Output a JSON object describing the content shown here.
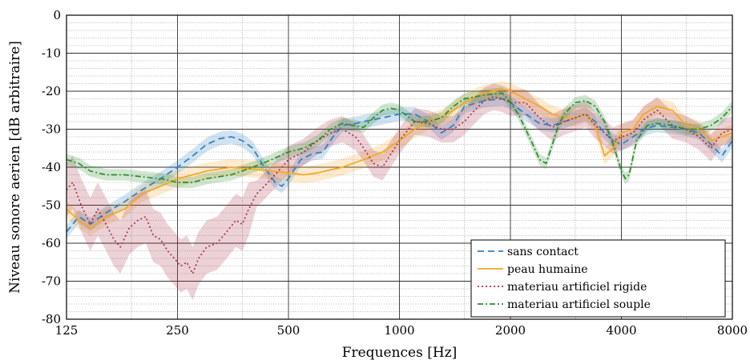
{
  "chart_data": {
    "type": "line",
    "xlabel": "Frequences [Hz]",
    "ylabel": "Niveau sonore aerien [dB arbitraire]",
    "x_scale": "log2",
    "xlim": [
      125,
      8000
    ],
    "ylim": [
      -80,
      0
    ],
    "x_ticks": [
      125,
      250,
      500,
      1000,
      2000,
      4000,
      8000
    ],
    "x_tick_labels": [
      "125",
      "250",
      "500",
      "1000",
      "2000",
      "4000",
      "8000"
    ],
    "y_ticks": [
      0,
      -10,
      -20,
      -30,
      -40,
      -50,
      -60,
      -70,
      -80
    ],
    "y_tick_labels": [
      "0",
      "-10",
      "-20",
      "-30",
      "-40",
      "-50",
      "-60",
      "-70",
      "-80"
    ],
    "grid": true,
    "minor_grid": true,
    "legend_position": "bottom-right",
    "series": [
      {
        "name": "sans contact",
        "color": "#2f7fbf",
        "dash": "8 5",
        "band": 1.8,
        "x": [
          125,
          135,
          145,
          160,
          180,
          200,
          225,
          250,
          275,
          300,
          325,
          350,
          375,
          400,
          430,
          460,
          480,
          500,
          540,
          580,
          620,
          660,
          700,
          760,
          800,
          900,
          1000,
          1100,
          1200,
          1300,
          1400,
          1500,
          1700,
          1900,
          2000,
          2200,
          2400,
          2600,
          2800,
          3000,
          3200,
          3400,
          3600,
          3800,
          4000,
          4300,
          4600,
          5000,
          5500,
          6000,
          6500,
          7000,
          7500,
          8000
        ],
        "y": [
          -57,
          -53,
          -55,
          -52,
          -49,
          -46,
          -43,
          -40,
          -37,
          -34,
          -32.5,
          -32,
          -33,
          -35,
          -40,
          -44,
          -45,
          -43,
          -38,
          -36.5,
          -36,
          -32,
          -29,
          -28.5,
          -28,
          -27,
          -26,
          -26,
          -28,
          -31,
          -29,
          -24,
          -22.5,
          -22,
          -23,
          -26,
          -28.5,
          -29,
          -28,
          -27,
          -26,
          -28,
          -31,
          -33,
          -34,
          -32,
          -30,
          -29,
          -29.5,
          -30,
          -31,
          -34,
          -37,
          -33
        ]
      },
      {
        "name": "peau humaine",
        "color": "#f5a623",
        "dash": "",
        "band": 2.2,
        "x": [
          125,
          135,
          145,
          160,
          180,
          200,
          225,
          250,
          275,
          300,
          350,
          400,
          450,
          500,
          550,
          600,
          700,
          800,
          900,
          1000,
          1100,
          1200,
          1300,
          1400,
          1500,
          1600,
          1700,
          1800,
          1900,
          2000,
          2200,
          2400,
          2600,
          2800,
          3000,
          3200,
          3400,
          3600,
          3800,
          4000,
          4300,
          4600,
          5000,
          5500,
          6000,
          6500,
          7000,
          7500,
          8000
        ],
        "y": [
          -51,
          -54,
          -56,
          -53,
          -51,
          -47,
          -45,
          -43,
          -42,
          -41,
          -40,
          -40.5,
          -41,
          -41.5,
          -42,
          -41.5,
          -40,
          -38,
          -36,
          -33,
          -30,
          -28,
          -27,
          -25,
          -23,
          -21.5,
          -20.5,
          -20,
          -19.5,
          -20,
          -22,
          -24,
          -26,
          -27,
          -27,
          -26,
          -29,
          -37,
          -35,
          -31,
          -30,
          -26,
          -24,
          -25,
          -29,
          -30,
          -33,
          -32,
          -31
        ]
      },
      {
        "name": "materiau artificiel rigide",
        "color": "#a8324a",
        "dash": "2 3",
        "band": 3.5,
        "band_large": {
          "x_from": 125,
          "x_to": 400,
          "width": 7
        },
        "x": [
          125,
          130,
          137,
          145,
          152,
          160,
          168,
          175,
          185,
          195,
          205,
          215,
          225,
          235,
          245,
          255,
          265,
          275,
          285,
          300,
          320,
          340,
          360,
          375,
          390,
          410,
          440,
          470,
          500,
          550,
          600,
          650,
          700,
          760,
          800,
          850,
          900,
          1000,
          1100,
          1200,
          1300,
          1400,
          1500,
          1600,
          1700,
          1800,
          1900,
          2000,
          2200,
          2400,
          2600,
          2800,
          3000,
          3200,
          3400,
          3600,
          3800,
          4000,
          4300,
          4600,
          5000,
          5500,
          6000,
          6500,
          7000,
          7500,
          8000
        ],
        "y": [
          -46,
          -44,
          -50,
          -55,
          -51,
          -55,
          -59,
          -61,
          -56,
          -54,
          -53,
          -58,
          -59,
          -62,
          -64,
          -66,
          -65,
          -68,
          -64,
          -61,
          -60,
          -57,
          -54,
          -55,
          -51,
          -47,
          -44,
          -41,
          -38,
          -36,
          -33,
          -31,
          -30,
          -32,
          -35,
          -39,
          -40,
          -33,
          -28,
          -28.5,
          -30,
          -30,
          -28,
          -25,
          -22.5,
          -21.5,
          -22,
          -23,
          -23,
          -27,
          -29.5,
          -28,
          -27,
          -26,
          -29,
          -31,
          -33,
          -32,
          -31,
          -27.5,
          -25,
          -29,
          -30,
          -32,
          -35,
          -31,
          -30
        ]
      },
      {
        "name": "materiau artificiel souple",
        "color": "#2e8b2e",
        "dash": "7 3 2 3",
        "band": 1.5,
        "x": [
          125,
          135,
          145,
          160,
          180,
          200,
          225,
          250,
          275,
          300,
          350,
          400,
          450,
          500,
          550,
          600,
          650,
          700,
          750,
          800,
          850,
          900,
          950,
          1000,
          1100,
          1200,
          1300,
          1400,
          1500,
          1700,
          1900,
          2000,
          2100,
          2200,
          2300,
          2400,
          2500,
          2600,
          2700,
          2800,
          3000,
          3200,
          3400,
          3600,
          3800,
          4000,
          4100,
          4200,
          4400,
          4700,
          5000,
          5500,
          6000,
          6500,
          7000,
          7500,
          8000
        ],
        "y": [
          -38,
          -39,
          -41,
          -42,
          -42,
          -42.5,
          -43,
          -44,
          -44,
          -43,
          -42,
          -40,
          -38,
          -36,
          -35,
          -33,
          -30,
          -28.5,
          -29,
          -29.5,
          -27,
          -25,
          -24.5,
          -25,
          -28,
          -28,
          -27,
          -24,
          -22,
          -21,
          -20.5,
          -23,
          -26,
          -30,
          -34,
          -38,
          -39,
          -34,
          -29,
          -26,
          -23,
          -22.5,
          -24,
          -28,
          -34,
          -41,
          -43,
          -42,
          -33,
          -29,
          -28.5,
          -29,
          -30,
          -30,
          -29,
          -27,
          -24
        ]
      }
    ]
  }
}
